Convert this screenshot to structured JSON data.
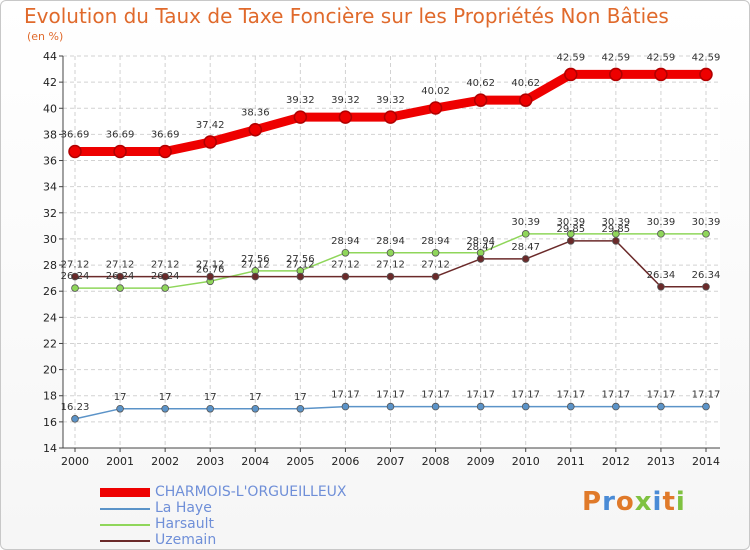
{
  "title": "Evolution du Taux de Taxe Foncière sur les Propriétés Non Bâties",
  "subtitle": "(en %)",
  "chart_data": {
    "type": "line",
    "x": [
      "2000",
      "2001",
      "2002",
      "2003",
      "2004",
      "2005",
      "2006",
      "2007",
      "2008",
      "2009",
      "2010",
      "2011",
      "2012",
      "2013",
      "2014"
    ],
    "ylim": [
      14,
      44
    ],
    "yticks": [
      14,
      16,
      18,
      20,
      22,
      24,
      26,
      28,
      30,
      32,
      34,
      36,
      38,
      40,
      42,
      44
    ],
    "grid": true,
    "legend_placement": "bottom-left",
    "series": [
      {
        "name": "CHARMOIS-L'ORGUEILLEUX",
        "color": "#ee0000",
        "values": [
          36.69,
          36.69,
          36.69,
          37.42,
          38.36,
          39.32,
          39.32,
          39.32,
          40.02,
          40.62,
          40.62,
          42.59,
          42.59,
          42.59,
          42.59
        ],
        "labels": [
          "36.69",
          "36.69",
          "36.69",
          "37.42",
          "38.36",
          "39.32",
          "39.32",
          "39.32",
          "40.02",
          "40.62",
          "40.62",
          "42.59",
          "42.59",
          "42.59",
          "42.59"
        ]
      },
      {
        "name": "La Haye",
        "color": "#5b93c8",
        "values": [
          16.23,
          17,
          17,
          17,
          17,
          17,
          17.17,
          17.17,
          17.17,
          17.17,
          17.17,
          17.17,
          17.17,
          17.17,
          17.17
        ],
        "labels": [
          "16.23",
          "17",
          "17",
          "17",
          "17",
          "17",
          "17.17",
          "17.17",
          "17.17",
          "17.17",
          "17.17",
          "17.17",
          "17.17",
          "17.17",
          "17.17"
        ]
      },
      {
        "name": "Harsault",
        "color": "#8fd65a",
        "values": [
          26.24,
          26.24,
          26.24,
          26.76,
          27.56,
          27.56,
          28.94,
          28.94,
          28.94,
          28.94,
          30.39,
          30.39,
          30.39,
          30.39,
          30.39
        ],
        "labels": [
          "26.24",
          "26.24",
          "26.24",
          "26.76",
          "27.56",
          "27.56",
          "28.94",
          "28.94",
          "28.94",
          "28.94",
          "30.39",
          "30.39",
          "30.39",
          "30.39",
          "30.39"
        ]
      },
      {
        "name": "Uzemain",
        "color": "#6b2a2a",
        "values": [
          27.12,
          27.12,
          27.12,
          27.12,
          27.12,
          27.12,
          27.12,
          27.12,
          27.12,
          28.47,
          28.47,
          29.85,
          29.85,
          26.34,
          26.34
        ],
        "labels": [
          "27.12",
          "27.12",
          "27.12",
          "27.12",
          "27.12",
          "27.12",
          "27.12",
          "27.12",
          "27.12",
          "28.47",
          "28.47",
          "29.85",
          "29.85",
          "26.34",
          "26.34"
        ]
      }
    ]
  },
  "logo": {
    "text": "Proxiti",
    "colors": [
      "#e07a2a",
      "#4a8bd6",
      "#e07a2a",
      "#7fc241",
      "#4a8bd6",
      "#e07a2a",
      "#7fc241"
    ]
  }
}
